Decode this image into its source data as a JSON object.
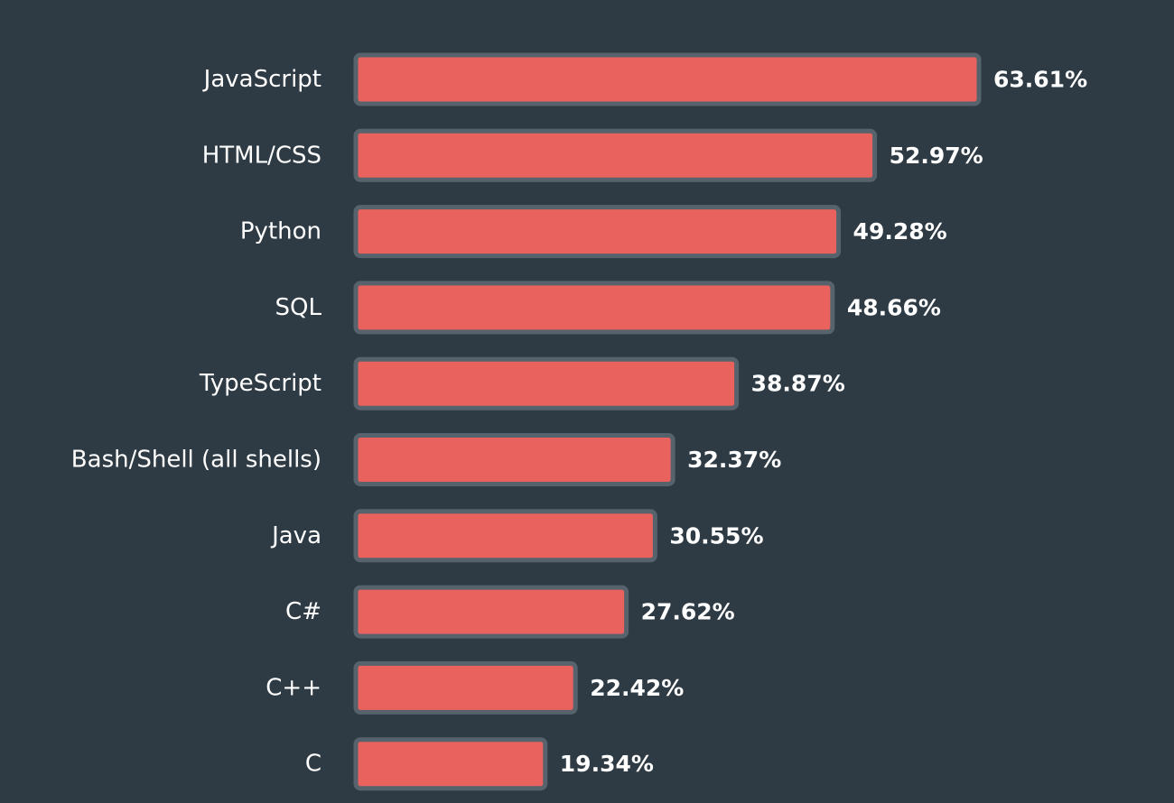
{
  "chart_data": {
    "type": "bar",
    "orientation": "horizontal",
    "categories": [
      "JavaScript",
      "HTML/CSS",
      "Python",
      "SQL",
      "TypeScript",
      "Bash/Shell (all shells)",
      "Java",
      "C#",
      "C++",
      "C"
    ],
    "values": [
      63.61,
      52.97,
      49.28,
      48.66,
      38.87,
      32.37,
      30.55,
      27.62,
      22.42,
      19.34
    ],
    "value_labels": [
      "63.61%",
      "52.97%",
      "49.28%",
      "48.66%",
      "38.87%",
      "32.37%",
      "30.55%",
      "27.62%",
      "22.42%",
      "19.34%"
    ],
    "xlim": [
      0,
      63.61
    ],
    "grid": false,
    "legend": "none",
    "colors": {
      "background": "#2e3b44",
      "bar": "#ea625d",
      "bar_border": "#56636d",
      "text": "#ffffff"
    }
  }
}
